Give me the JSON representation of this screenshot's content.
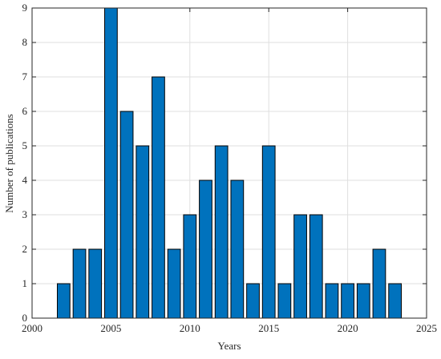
{
  "chart_data": {
    "type": "bar",
    "x_label": "Years",
    "y_label": "Number of publications",
    "x": [
      2002,
      2003,
      2004,
      2005,
      2006,
      2007,
      2008,
      2009,
      2010,
      2011,
      2012,
      2013,
      2014,
      2015,
      2016,
      2017,
      2018,
      2019,
      2020,
      2021,
      2022,
      2023
    ],
    "values": [
      1,
      2,
      2,
      9,
      6,
      5,
      7,
      2,
      3,
      4,
      5,
      4,
      1,
      5,
      1,
      3,
      3,
      1,
      1,
      1,
      2,
      1
    ],
    "color": "#0072bd",
    "xlim": [
      2000,
      2025
    ],
    "xticks": [
      2000,
      2005,
      2010,
      2015,
      2020,
      2025
    ],
    "ylim": [
      0,
      9
    ],
    "yticks": [
      0,
      1,
      2,
      3,
      4,
      5,
      6,
      7,
      8,
      9
    ],
    "grid": true
  }
}
